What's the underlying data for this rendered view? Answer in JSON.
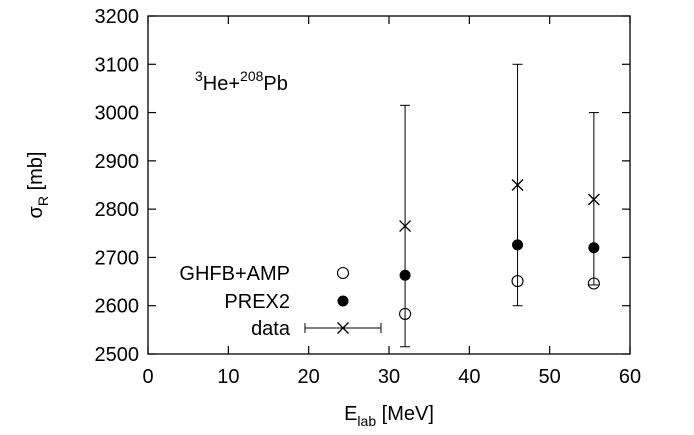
{
  "chart_data": {
    "type": "scatter",
    "xlabel": {
      "base": "E",
      "sub": "lab",
      "unit": " [MeV]"
    },
    "ylabel": {
      "base": "σ",
      "sub": "R",
      "unit": " [mb]"
    },
    "xlim": [
      0,
      60
    ],
    "ylim": [
      2500,
      3200
    ],
    "xticks": [
      0,
      10,
      20,
      30,
      40,
      50,
      60
    ],
    "yticks": [
      2500,
      2600,
      2700,
      2800,
      2900,
      3000,
      3100,
      3200
    ],
    "grid": false,
    "legend_position": "bottom-left",
    "annotation": {
      "sup1": "3",
      "t1": "He+",
      "sup2": "208",
      "t2": "Pb"
    },
    "series": [
      {
        "name": "GHFB+AMP",
        "marker": "open-circle",
        "x": [
          32,
          46,
          55.5
        ],
        "y": [
          2583,
          2651,
          2646
        ]
      },
      {
        "name": "PREX2",
        "marker": "filled-circle",
        "x": [
          32,
          46,
          55.5
        ],
        "y": [
          2663,
          2726,
          2720
        ]
      },
      {
        "name": "data",
        "marker": "cross",
        "x": [
          32,
          46,
          55.5
        ],
        "y": [
          2765,
          2850,
          2820
        ],
        "yerr_low": [
          2515,
          2600,
          2643
        ],
        "yerr_high": [
          3015,
          3100,
          3000
        ]
      }
    ]
  }
}
